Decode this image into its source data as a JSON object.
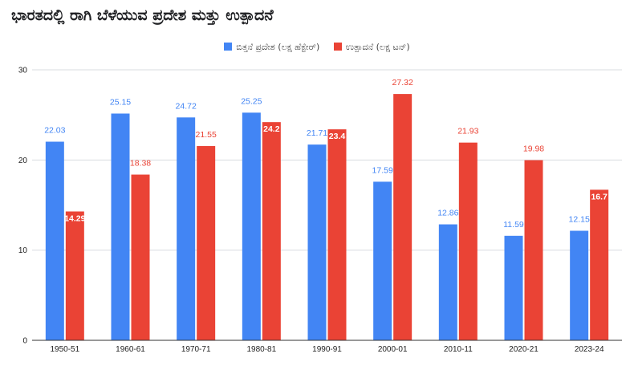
{
  "chart_data": {
    "type": "bar",
    "title": "ಭಾರತದಲ್ಲಿ ರಾಗಿ ಬೆಳೆಯುವ ಪ್ರದೇಶ ಮತ್ತು ಉತ್ಪಾದನೆ",
    "xlabel": "",
    "ylabel": "",
    "ylim": [
      0,
      30
    ],
    "yticks": [
      0,
      10,
      20,
      30
    ],
    "grid": true,
    "legend_position": "top",
    "categories": [
      "1950-51",
      "1960-61",
      "1970-71",
      "1980-81",
      "1990-91",
      "2000-01",
      "2010-11",
      "2020-21",
      "2023-24"
    ],
    "series": [
      {
        "name": "ಬಿತ್ತನೆ ಪ್ರದೇಶ (ಲಕ್ಷ ಹೆಕ್ಟೇರ್)",
        "color": "#4285F4",
        "values": [
          22.03,
          25.15,
          24.72,
          25.25,
          21.71,
          17.59,
          12.86,
          11.59,
          12.15
        ],
        "labels": [
          "22.03",
          "25.15",
          "24.72",
          "25.25",
          "21.71",
          "17.59",
          "12.86",
          "11.59",
          "12.15"
        ]
      },
      {
        "name": "ಉತ್ಪಾದನೆ (ಲಕ್ಷ ಟನ್)",
        "color": "#EA4335",
        "values": [
          14.29,
          18.38,
          21.55,
          24.2,
          23.4,
          27.32,
          21.93,
          19.98,
          16.7
        ],
        "labels": [
          "14.29",
          "18.38",
          "21.55",
          "24.2",
          "23.4",
          "27.32",
          "21.93",
          "19.98",
          "16.7"
        ]
      }
    ]
  }
}
